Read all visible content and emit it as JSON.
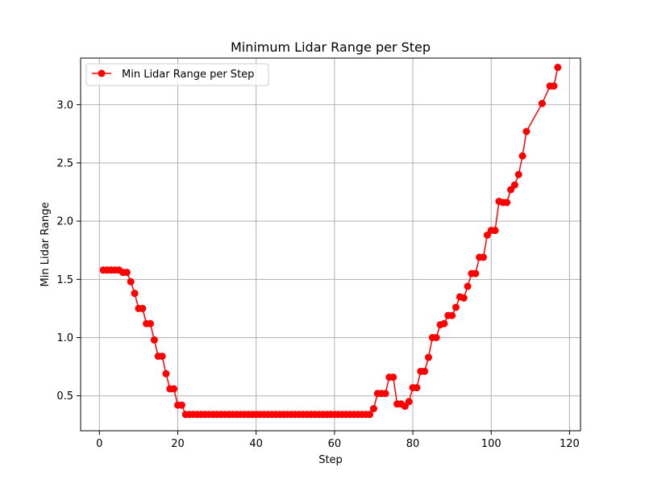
{
  "colors": {
    "series": "#ff0000",
    "grid": "#b0b0b0",
    "axis": "#000000"
  },
  "chart_data": {
    "type": "line",
    "title": "Minimum Lidar Range per Step",
    "xlabel": "Step",
    "ylabel": "Min Lidar Range",
    "xlim": [
      -4.8,
      122.8
    ],
    "ylim": [
      0.2,
      3.4
    ],
    "xticks": [
      0,
      20,
      40,
      60,
      80,
      100,
      120
    ],
    "xtick_labels": [
      "0",
      "20",
      "40",
      "60",
      "80",
      "100",
      "120"
    ],
    "yticks": [
      0.5,
      1.0,
      1.5,
      2.0,
      2.5,
      3.0
    ],
    "ytick_labels": [
      "0.5",
      "1.0",
      "1.5",
      "2.0",
      "2.5",
      "3.0"
    ],
    "grid": true,
    "legend": {
      "position": "top-left"
    },
    "series": [
      {
        "name": "Min Lidar Range per Step",
        "marker": "circle",
        "x": [
          1,
          2,
          3,
          4,
          5,
          6,
          7,
          8,
          9,
          10,
          11,
          12,
          13,
          14,
          15,
          16,
          17,
          18,
          19,
          20,
          21,
          22,
          23,
          24,
          25,
          26,
          27,
          28,
          29,
          30,
          31,
          32,
          33,
          34,
          35,
          36,
          37,
          38,
          39,
          40,
          41,
          42,
          43,
          44,
          45,
          46,
          47,
          48,
          49,
          50,
          51,
          52,
          53,
          54,
          55,
          56,
          57,
          58,
          59,
          60,
          61,
          62,
          63,
          64,
          65,
          66,
          67,
          68,
          69,
          70,
          71,
          72,
          73,
          74,
          75,
          76,
          77,
          78,
          79,
          80,
          81,
          82,
          83,
          84,
          85,
          86,
          87,
          88,
          89,
          90,
          91,
          92,
          93,
          94,
          95,
          96,
          97,
          98,
          99,
          100,
          101,
          102,
          103,
          104,
          105,
          106,
          107,
          108,
          109,
          113,
          115,
          116,
          117
        ],
        "y": [
          1.58,
          1.58,
          1.58,
          1.58,
          1.58,
          1.56,
          1.56,
          1.48,
          1.38,
          1.25,
          1.25,
          1.12,
          1.12,
          0.98,
          0.84,
          0.84,
          0.69,
          0.56,
          0.56,
          0.42,
          0.42,
          0.34,
          0.34,
          0.34,
          0.34,
          0.34,
          0.34,
          0.34,
          0.34,
          0.34,
          0.34,
          0.34,
          0.34,
          0.34,
          0.34,
          0.34,
          0.34,
          0.34,
          0.34,
          0.34,
          0.34,
          0.34,
          0.34,
          0.34,
          0.34,
          0.34,
          0.34,
          0.34,
          0.34,
          0.34,
          0.34,
          0.34,
          0.34,
          0.34,
          0.34,
          0.34,
          0.34,
          0.34,
          0.34,
          0.34,
          0.34,
          0.34,
          0.34,
          0.34,
          0.34,
          0.34,
          0.34,
          0.34,
          0.34,
          0.39,
          0.52,
          0.52,
          0.52,
          0.66,
          0.66,
          0.43,
          0.43,
          0.41,
          0.45,
          0.57,
          0.57,
          0.71,
          0.71,
          0.83,
          1.0,
          1.0,
          1.11,
          1.12,
          1.19,
          1.19,
          1.26,
          1.35,
          1.34,
          1.44,
          1.55,
          1.55,
          1.69,
          1.69,
          1.88,
          1.92,
          1.92,
          2.17,
          2.16,
          2.16,
          2.27,
          2.31,
          2.4,
          2.56,
          2.77,
          3.01,
          3.16,
          3.16,
          3.32
        ]
      }
    ]
  }
}
